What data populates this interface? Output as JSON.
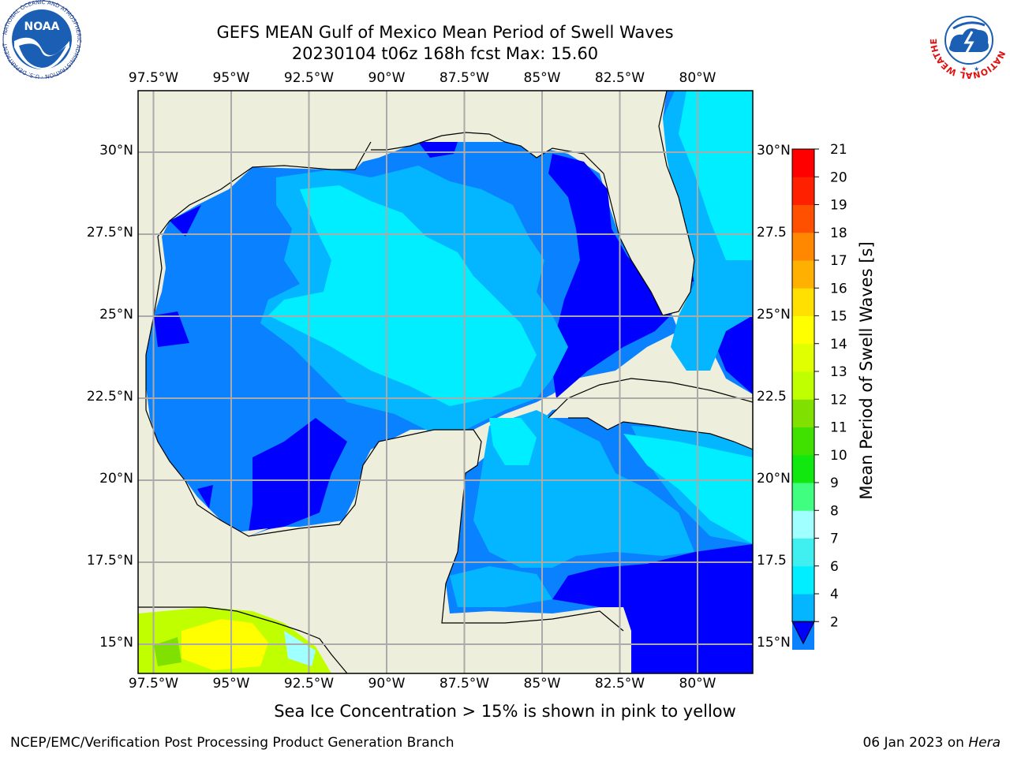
{
  "title": {
    "line1": "GEFS MEAN Gulf of Mexico Mean Period of Swell Waves",
    "line2": "20230104 t06z 168h fcst   Max: 15.60"
  },
  "axes": {
    "lon_labels": [
      "97.5°W",
      "95°W",
      "92.5°W",
      "90°W",
      "87.5°W",
      "85°W",
      "82.5°W",
      "80°W"
    ],
    "lat_labels_left": [
      "30°N",
      "27.5°N",
      "25°N",
      "22.5°N",
      "20°N",
      "17.5°N",
      "15°N"
    ],
    "lat_labels_right": [
      "30°N",
      "27.5",
      "25°N",
      "22.5",
      "20°N",
      "17.5",
      "15°N"
    ],
    "lon_values": [
      -97.5,
      -95,
      -92.5,
      -90,
      -87.5,
      -85,
      -82.5,
      -80
    ],
    "lat_values": [
      30,
      27.5,
      25,
      22.5,
      20,
      17.5,
      15
    ]
  },
  "colorbar": {
    "label": "Mean Period of Swell Waves [s]",
    "ticks": [
      "2",
      "4",
      "6",
      "7",
      "8",
      "9",
      "10",
      "11",
      "12",
      "13",
      "14",
      "15",
      "16",
      "17",
      "18",
      "19",
      "20",
      "21"
    ],
    "colors": [
      "#0a82ff",
      "#04b6ff",
      "#00eeff",
      "#40f0f0",
      "#a0ffff",
      "#40ff80",
      "#10e810",
      "#40e000",
      "#80e000",
      "#c0ff00",
      "#e0ff00",
      "#ffff00",
      "#ffe000",
      "#ffb000",
      "#ff8800",
      "#ff5000",
      "#ff2000",
      "#ff0000"
    ],
    "under_color": "#0000ff"
  },
  "colors": {
    "land": "#eeeedc",
    "class_2_4": "#0a82ff",
    "class_4_6": "#04b6ff",
    "class_6_7": "#00eeff",
    "class_lt_2": "#0000ff",
    "grid": "#aaaaaa"
  },
  "note": "Sea Ice Concentration > 15% is shown in pink to yellow",
  "footer": {
    "left": "NCEP/EMC/Verification Post Processing Product Generation Branch",
    "right_prefix": "06 Jan 2023 on ",
    "right_host": "Hera"
  },
  "logos": {
    "noaa": "NOAA",
    "noaa_ring": "NATIONAL OCEANIC AND ATMOSPHERIC ADMINISTRATION · U.S. DEPARTMENT OF COMMERCE",
    "nws_ring": "NATIONAL WEATHER SERVICE"
  }
}
